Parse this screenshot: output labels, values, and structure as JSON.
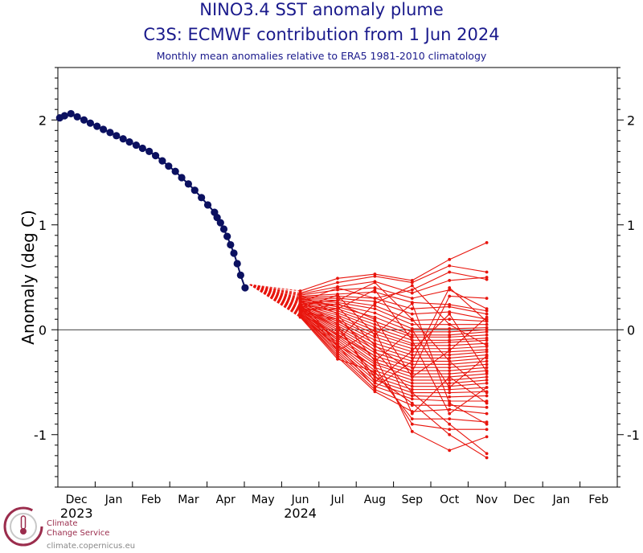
{
  "header": {
    "title": "NINO3.4 SST anomaly plume",
    "subtitle": "C3S: ECMWF contribution from 1 Jun 2024",
    "note": "Monthly mean anomalies relative to ERA5 1981-2010 climatology"
  },
  "logo": {
    "line1": "Climate",
    "line2": "Change Service",
    "url": "climate.copernicus.eu"
  },
  "colors": {
    "observed": "#0b1060",
    "forecast": "#e8140c",
    "text": "#1a1a8c",
    "logo": "#9b2d4d"
  },
  "chart_data": {
    "type": "line",
    "ylabel": "Anomaly (deg C)",
    "ylim": [
      -1.5,
      2.5
    ],
    "yticks": [
      -1,
      0,
      1,
      2
    ],
    "x_months": [
      "Dec",
      "Jan",
      "Feb",
      "Mar",
      "Apr",
      "May",
      "Jun",
      "Jul",
      "Aug",
      "Sep",
      "Oct",
      "Nov",
      "Dec",
      "Jan",
      "Feb"
    ],
    "year_labels": [
      {
        "month": "Dec",
        "label": "2023"
      },
      {
        "month": "Jun",
        "label": "2024"
      }
    ],
    "observed": {
      "description": "weekly observed anomalies, x in months since start of Dec 2023",
      "x": [
        0.05,
        0.18,
        0.35,
        0.52,
        0.7,
        0.87,
        1.05,
        1.22,
        1.4,
        1.57,
        1.75,
        1.92,
        2.1,
        2.27,
        2.45,
        2.62,
        2.8,
        2.97,
        3.15,
        3.32,
        3.5,
        3.67,
        3.85,
        4.02,
        4.2,
        4.27,
        4.36,
        4.45,
        4.54,
        4.63,
        4.72,
        4.81,
        4.9,
        5.02
      ],
      "y": [
        2.02,
        2.04,
        2.06,
        2.03,
        2.0,
        1.97,
        1.94,
        1.91,
        1.88,
        1.85,
        1.82,
        1.79,
        1.76,
        1.73,
        1.7,
        1.66,
        1.61,
        1.56,
        1.51,
        1.45,
        1.39,
        1.33,
        1.26,
        1.19,
        1.12,
        1.07,
        1.02,
        0.96,
        0.89,
        0.81,
        0.73,
        0.63,
        0.52,
        0.4
      ]
    },
    "forecast_start": {
      "month": "Jun",
      "value_range": [
        0.12,
        0.37
      ]
    },
    "forecast": {
      "description": "ensemble member values at Jun, Jul, Aug, Sep, Oct, Nov",
      "months": [
        "Jun",
        "Jul",
        "Aug",
        "Sep",
        "Oct",
        "Nov"
      ],
      "members": [
        [
          0.37,
          0.49,
          0.53,
          0.47,
          0.67,
          0.83
        ],
        [
          0.35,
          0.45,
          0.51,
          0.45,
          0.61,
          0.55
        ],
        [
          0.34,
          0.41,
          0.46,
          0.35,
          0.47,
          0.5
        ],
        [
          0.33,
          0.38,
          0.4,
          0.3,
          0.38,
          0.2
        ],
        [
          0.32,
          0.34,
          0.36,
          0.26,
          0.24,
          0.18
        ],
        [
          0.31,
          0.32,
          0.3,
          0.2,
          0.22,
          0.15
        ],
        [
          0.3,
          0.3,
          0.27,
          0.15,
          0.17,
          0.1
        ],
        [
          0.29,
          0.28,
          0.23,
          0.09,
          0.1,
          0.08
        ],
        [
          0.28,
          0.26,
          0.2,
          0.05,
          0.05,
          0.05
        ],
        [
          0.27,
          0.24,
          0.16,
          0.01,
          0.01,
          0.02
        ],
        [
          0.27,
          0.22,
          0.12,
          -0.02,
          -0.02,
          0.0
        ],
        [
          0.26,
          0.2,
          0.08,
          -0.05,
          -0.05,
          -0.02
        ],
        [
          0.25,
          0.18,
          0.05,
          -0.07,
          -0.07,
          -0.05
        ],
        [
          0.25,
          0.16,
          0.02,
          -0.1,
          -0.1,
          -0.08
        ],
        [
          0.24,
          0.14,
          -0.01,
          -0.13,
          -0.12,
          -0.1
        ],
        [
          0.23,
          0.12,
          -0.04,
          -0.15,
          -0.15,
          -0.13
        ],
        [
          0.23,
          0.1,
          -0.07,
          -0.18,
          -0.18,
          -0.16
        ],
        [
          0.22,
          0.08,
          -0.1,
          -0.21,
          -0.21,
          -0.19
        ],
        [
          0.21,
          0.06,
          -0.13,
          -0.24,
          -0.24,
          -0.21
        ],
        [
          0.21,
          0.04,
          -0.16,
          -0.27,
          -0.27,
          -0.24
        ],
        [
          0.2,
          0.02,
          -0.19,
          -0.3,
          -0.3,
          -0.27
        ],
        [
          0.2,
          0.0,
          -0.22,
          -0.33,
          -0.33,
          -0.3
        ],
        [
          0.19,
          -0.02,
          -0.25,
          -0.36,
          -0.36,
          -0.33
        ],
        [
          0.18,
          -0.04,
          -0.28,
          -0.39,
          -0.39,
          -0.36
        ],
        [
          0.18,
          -0.06,
          -0.31,
          -0.42,
          -0.42,
          -0.39
        ],
        [
          0.17,
          -0.08,
          -0.33,
          -0.45,
          -0.45,
          -0.42
        ],
        [
          0.17,
          -0.1,
          -0.36,
          -0.48,
          -0.48,
          -0.45
        ],
        [
          0.16,
          -0.12,
          -0.39,
          -0.51,
          -0.51,
          -0.48
        ],
        [
          0.16,
          -0.14,
          -0.42,
          -0.54,
          -0.54,
          -0.51
        ],
        [
          0.15,
          -0.16,
          -0.45,
          -0.57,
          -0.57,
          -0.55
        ],
        [
          0.15,
          -0.18,
          -0.48,
          -0.6,
          -0.6,
          -0.59
        ],
        [
          0.14,
          -0.2,
          -0.51,
          -0.63,
          -0.64,
          -0.63
        ],
        [
          0.14,
          -0.22,
          -0.54,
          -0.66,
          -0.68,
          -0.68
        ],
        [
          0.13,
          -0.24,
          -0.57,
          -0.72,
          -0.72,
          -0.74
        ],
        [
          0.13,
          -0.26,
          -0.59,
          -0.78,
          -0.76,
          -0.8
        ],
        [
          0.12,
          -0.28,
          -0.4,
          -0.85,
          -0.85,
          -0.88
        ],
        [
          0.12,
          -0.15,
          -0.35,
          -0.9,
          -0.95,
          -0.95
        ],
        [
          0.15,
          -0.05,
          -0.25,
          -0.97,
          -1.15,
          -1.02
        ],
        [
          0.18,
          0.1,
          -0.2,
          -0.6,
          -0.9,
          -1.18
        ],
        [
          0.22,
          0.02,
          -0.45,
          -0.7,
          -1.0,
          -1.22
        ],
        [
          0.26,
          0.4,
          0.3,
          0.38,
          0.55,
          0.48
        ],
        [
          0.3,
          0.22,
          -0.15,
          -0.4,
          0.32,
          0.3
        ],
        [
          0.24,
          0.28,
          0.45,
          0.1,
          -0.3,
          -0.6
        ],
        [
          0.2,
          -0.1,
          0.25,
          0.42,
          0.05,
          -0.15
        ],
        [
          0.28,
          0.05,
          -0.5,
          -0.2,
          0.15,
          -0.4
        ],
        [
          0.33,
          0.15,
          -0.3,
          0.0,
          -0.55,
          -0.25
        ],
        [
          0.17,
          0.25,
          0.1,
          -0.45,
          -0.2,
          0.12
        ],
        [
          0.25,
          -0.2,
          0.0,
          -0.8,
          -0.45,
          -0.7
        ],
        [
          0.21,
          0.33,
          -0.05,
          0.25,
          -0.7,
          -0.9
        ],
        [
          0.29,
          -0.15,
          -0.55,
          -0.3,
          0.4,
          0.08
        ],
        [
          0.19,
          0.2,
          0.38,
          -0.1,
          -0.8,
          -0.55
        ]
      ]
    }
  }
}
